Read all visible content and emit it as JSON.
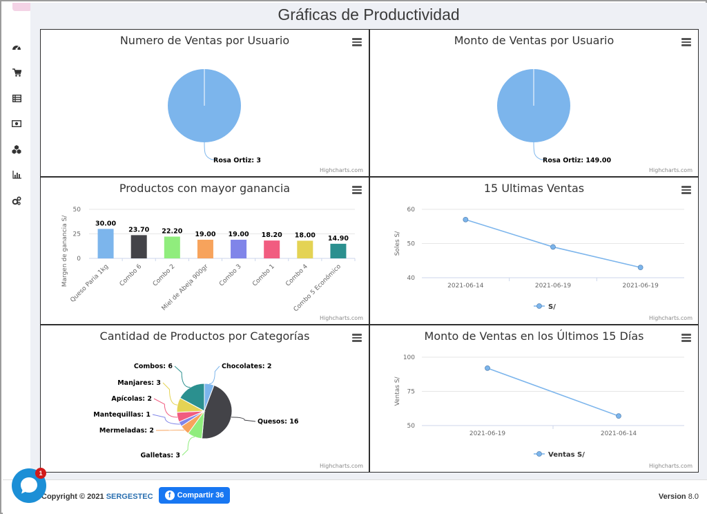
{
  "page_title": "Gráficas de Productividad",
  "sidebar": {
    "icons": [
      "dashboard-icon",
      "cart-icon",
      "list-icon",
      "money-icon",
      "cubes-icon",
      "bar-chart-icon",
      "settings-icon"
    ]
  },
  "cards": {
    "ventas_usuario": {
      "title": "Numero de Ventas por Usuario",
      "credits": "Highcharts.com"
    },
    "monto_usuario": {
      "title": "Monto de Ventas por Usuario",
      "credits": "Highcharts.com"
    },
    "productos_ganancia": {
      "title": "Productos con mayor ganancia",
      "credits": "Highcharts.com"
    },
    "ultimas_ventas": {
      "title": "15 Ultimas Ventas",
      "credits": "Highcharts.com"
    },
    "categorias": {
      "title": "Cantidad de Productos por Categorías",
      "credits": "Highcharts.com"
    },
    "monto_15": {
      "title": "Monto de Ventas en los Últimos 15 Días",
      "credits": "Highcharts.com"
    }
  },
  "chart_data": [
    {
      "type": "pie",
      "title": "Numero de Ventas por Usuario",
      "slices": [
        {
          "name": "Rosa Ortiz",
          "value": 3,
          "label": "Rosa Ortiz: 3",
          "color": "#7cb5ec"
        }
      ]
    },
    {
      "type": "pie",
      "title": "Monto de Ventas por Usuario",
      "slices": [
        {
          "name": "Rosa Ortiz",
          "value": 149.0,
          "label": "Rosa Ortiz: 149.00",
          "color": "#7cb5ec"
        }
      ]
    },
    {
      "type": "bar",
      "title": "Productos con mayor ganancia",
      "ylabel": "Margen de ganancia S/",
      "ylim": [
        0,
        50
      ],
      "yticks": [
        "0",
        "25",
        "50"
      ],
      "categories": [
        "Queso Paria 1kg",
        "Combo 6",
        "Combo 2",
        "Miel de Abeja 900gr",
        "Combo 3",
        "Combo 1",
        "Combo 4",
        "Combo 5 Económico"
      ],
      "values": [
        30.0,
        23.7,
        22.2,
        19.0,
        19.0,
        18.2,
        18.0,
        14.9
      ],
      "labels": [
        "30.00",
        "23.70",
        "22.20",
        "19.00",
        "19.00",
        "18.20",
        "18.00",
        "14.90"
      ],
      "colors": [
        "#7cb5ec",
        "#434348",
        "#90ed7d",
        "#f7a35c",
        "#8085e9",
        "#f15c80",
        "#e4d354",
        "#2b908f"
      ]
    },
    {
      "type": "line",
      "title": "15 Ultimas Ventas",
      "ylabel": "Soles S/",
      "ylim": [
        40,
        60
      ],
      "yticks": [
        "40",
        "50",
        "60"
      ],
      "categories": [
        "2021-06-14",
        "2021-06-19",
        "2021-06-19"
      ],
      "series": [
        {
          "name": "S/",
          "values": [
            57,
            49,
            43
          ],
          "color": "#7cb5ec"
        }
      ]
    },
    {
      "type": "pie",
      "title": "Cantidad de Productos por Categorías",
      "slices": [
        {
          "name": "Chocolates",
          "value": 2,
          "label": "Chocolates: 2",
          "color": "#7cb5ec"
        },
        {
          "name": "Quesos",
          "value": 16,
          "label": "Quesos: 16",
          "color": "#434348"
        },
        {
          "name": "Galletas",
          "value": 3,
          "label": "Galletas: 3",
          "color": "#90ed7d"
        },
        {
          "name": "Mermeladas",
          "value": 2,
          "label": "Mermeladas: 2",
          "color": "#f7a35c"
        },
        {
          "name": "Mantequillas",
          "value": 1,
          "label": "Mantequillas: 1",
          "color": "#8085e9"
        },
        {
          "name": "Apícolas",
          "value": 2,
          "label": "Apícolas: 2",
          "color": "#f15c80"
        },
        {
          "name": "Manjares",
          "value": 3,
          "label": "Manjares: 3",
          "color": "#e4d354"
        },
        {
          "name": "Combos",
          "value": 6,
          "label": "Combos: 6",
          "color": "#2b908f"
        }
      ]
    },
    {
      "type": "line",
      "title": "Monto de Ventas en los Últimos 15 Días",
      "ylabel": "Ventas S/",
      "ylim": [
        50,
        100
      ],
      "yticks": [
        "50",
        "75",
        "100"
      ],
      "categories": [
        "2021-06-19",
        "2021-06-14"
      ],
      "series": [
        {
          "name": "Ventas S/",
          "values": [
            92,
            57
          ],
          "color": "#7cb5ec"
        }
      ]
    }
  ],
  "footer": {
    "copyright_prefix": "Copyright © 2021 ",
    "brand": "SERGESTEC",
    "share_label": "Compartir 36",
    "fb_glyph": "f",
    "version_label": "Version",
    "version_value": "8.0"
  },
  "chat": {
    "badge_count": "1"
  }
}
